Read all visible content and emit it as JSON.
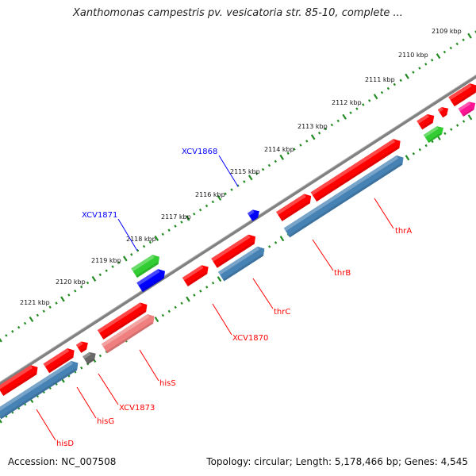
{
  "title": "Xanthomonas campestris pv. vesicatoria str. 85-10, complete ...",
  "footer": {
    "accession_label": "Accession:",
    "accession": "NC_007508",
    "topology_label": "Topology:",
    "topology": "circular",
    "length_label": "Length:",
    "length": "5,178,466 bp",
    "genes_label": "Genes:",
    "genes": "4,545"
  },
  "colors": {
    "backbone": "#808080",
    "forward_gene": "#ff0000",
    "reverse_gene": "#4682b4",
    "rna": "#32cd32",
    "pseudo": "#0000ff",
    "label_red": "#ff0000",
    "label_blue": "#0000ff",
    "ticks": "#228b22"
  },
  "scale_labels": [
    "2109 kbp",
    "2110 kbp",
    "2111 kbp",
    "2112 kbp",
    "2113 kbp",
    "2114 kbp",
    "2115 kbp",
    "2116 kbp",
    "2117 kbp",
    "2118 kbp",
    "2119 kbp",
    "2120 kbp",
    "2121 kbp"
  ],
  "gene_labels": [
    {
      "text": "XCV1868",
      "color": "blue"
    },
    {
      "text": "XCV1871",
      "color": "blue"
    },
    {
      "text": "thrA",
      "color": "red"
    },
    {
      "text": "thrB",
      "color": "red"
    },
    {
      "text": "thrC",
      "color": "red"
    },
    {
      "text": "XCV1870",
      "color": "red"
    },
    {
      "text": "hisS",
      "color": "red"
    },
    {
      "text": "XCV1873",
      "color": "red"
    },
    {
      "text": "hisG",
      "color": "red"
    },
    {
      "text": "hisD",
      "color": "red"
    }
  ]
}
